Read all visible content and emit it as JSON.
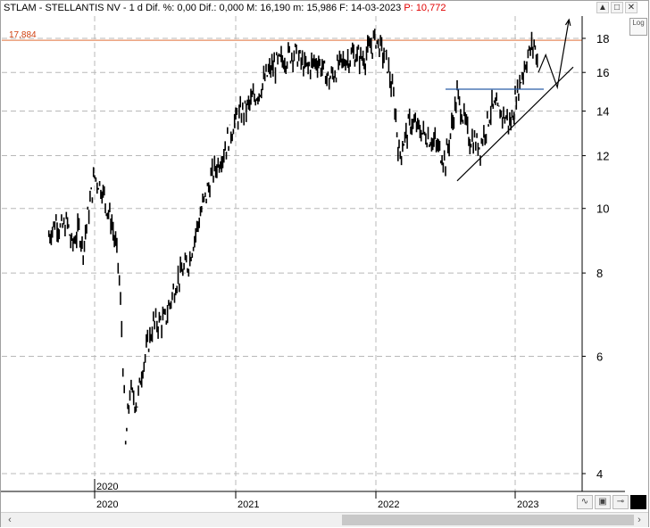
{
  "header": {
    "symbol": "STLAM - STELLANTIS NV -",
    "interval": "1 d",
    "dif_pct_label": "Dif. %:",
    "dif_pct_value": "0,00",
    "dif_label": "Dif.:",
    "dif_value": "0,000",
    "max_label": "M:",
    "max_value": "16,190",
    "min_label": "m:",
    "min_value": "15,986",
    "date_label": "F:",
    "date_value": "14-03-2023",
    "price_label": "P:",
    "price_value": "10,772"
  },
  "controls": {
    "scroll_up": "▲",
    "maximize": "□",
    "close": "✕",
    "log": "Log"
  },
  "toolbar": {
    "wave_icon": "wave-icon",
    "save_icon": "save-icon",
    "pin_icon": "pin-icon",
    "color_icon": "color-square-icon"
  },
  "scrollbar": {
    "left": "‹",
    "right": "›"
  },
  "colors": {
    "resistance_line": "#e0703a",
    "resistance_label": "#d04010",
    "neckline": "#2a5ea8",
    "price": "#000000",
    "grid": "#b8b8b8"
  },
  "chart_data": {
    "type": "candlestick",
    "title": "STLAM - STELLANTIS NV - 1 d",
    "y_scale": "log",
    "ylim": [
      3.8,
      19.5
    ],
    "y_ticks": [
      "4",
      "6",
      "8",
      "10",
      "12",
      "14",
      "16",
      "18"
    ],
    "x_ticks": [
      "2020",
      "2021",
      "2022",
      "2023"
    ],
    "x_secondary_label": "2020",
    "grid": true,
    "resistance_level": {
      "value": 17.884,
      "label": "17,884"
    },
    "price_path": [
      [
        "2019-09",
        9.1
      ],
      [
        "2019-09-20",
        9.6
      ],
      [
        "2019-10",
        9.3
      ],
      [
        "2019-10-20",
        9.5
      ],
      [
        "2019-11",
        8.8
      ],
      [
        "2019-11-20",
        9.3
      ],
      [
        "2019-12",
        8.7
      ],
      [
        "2020-01",
        11.2
      ],
      [
        "2020-01-20",
        10.7
      ],
      [
        "2020-02",
        10.1
      ],
      [
        "2020-02-15",
        9.5
      ],
      [
        "2020-03",
        8.3
      ],
      [
        "2020-03-10",
        6.6
      ],
      [
        "2020-03-20",
        4.4
      ],
      [
        "2020-04",
        5.3
      ],
      [
        "2020-04-20",
        5.1
      ],
      [
        "2020-05",
        5.7
      ],
      [
        "2020-06",
        6.7
      ],
      [
        "2020-07",
        6.8
      ],
      [
        "2020-08",
        7.8
      ],
      [
        "2020-09",
        8.3
      ],
      [
        "2020-10",
        9.8
      ],
      [
        "2020-11",
        11.2
      ],
      [
        "2020-12",
        12.2
      ],
      [
        "2021-01",
        13.6
      ],
      [
        "2021-02",
        14.2
      ],
      [
        "2021-03",
        15.0
      ],
      [
        "2021-04",
        16.2
      ],
      [
        "2021-05",
        16.7
      ],
      [
        "2021-06",
        17.2
      ],
      [
        "2021-07",
        16.2
      ],
      [
        "2021-08",
        16.7
      ],
      [
        "2021-09",
        15.6
      ],
      [
        "2021-10",
        16.5
      ],
      [
        "2021-11",
        17.0
      ],
      [
        "2021-12",
        16.8
      ],
      [
        "2022-01",
        18.0
      ],
      [
        "2022-02",
        16.5
      ],
      [
        "2022-02-20",
        14.2
      ],
      [
        "2022-03",
        12.0
      ],
      [
        "2022-04",
        13.5
      ],
      [
        "2022-05",
        13.0
      ],
      [
        "2022-06",
        12.6
      ],
      [
        "2022-07",
        11.8
      ],
      [
        "2022-07-20",
        13.5
      ],
      [
        "2022-08",
        14.8
      ],
      [
        "2022-09",
        12.8
      ],
      [
        "2022-10",
        12.4
      ],
      [
        "2022-11",
        14.2
      ],
      [
        "2022-12",
        13.8
      ],
      [
        "2022-12-20",
        13.4
      ],
      [
        "2023-01",
        14.5
      ],
      [
        "2023-02",
        16.8
      ],
      [
        "2023-02-20",
        17.7
      ],
      [
        "2023-03",
        16.4
      ]
    ],
    "annotations": [
      {
        "type": "horizontal_line",
        "name": "neckline",
        "value": 15.1,
        "from": "2022-07",
        "to": "2023-03"
      },
      {
        "type": "trendline",
        "name": "support",
        "from": [
          "2022-08",
          11.0
        ],
        "to": [
          "2023-06",
          16.3
        ]
      },
      {
        "type": "projection_path",
        "points": [
          [
            "2023-03",
            16.0
          ],
          [
            "2023-03-20",
            17.0
          ],
          [
            "2023-04-20",
            15.2
          ],
          [
            "2023-05-20",
            19.2
          ]
        ]
      }
    ]
  }
}
